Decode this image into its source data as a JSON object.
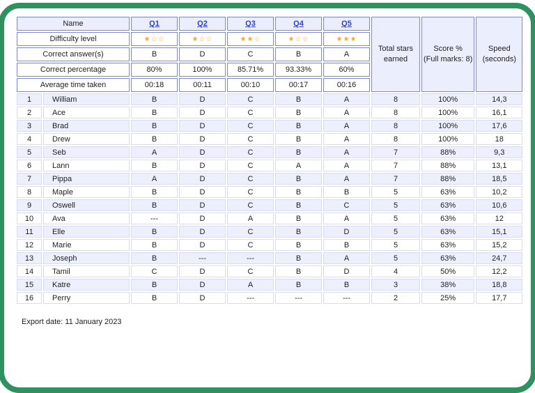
{
  "colors": {
    "frame_green": "#2e915f",
    "header_border_blue": "#7b85e0",
    "data_border_lavender": "#d7dcf3",
    "row_lavender": "#edeffc",
    "link_blue": "#2f3fd6",
    "correct_green": "#45bd7f",
    "wrong_red": "#f4524a",
    "star_gold": "#f9a825"
  },
  "icons": {
    "star_filled": "★",
    "star_outline": "☆"
  },
  "header": {
    "name_label": "Name",
    "row_labels": [
      "Difficulty level",
      "Correct answer(s)",
      "Correct percentage",
      "Average time taken"
    ],
    "questions": [
      {
        "label": "Q1",
        "stars": 1,
        "answer": "B",
        "percentage": "80%",
        "avg_time": "00:18"
      },
      {
        "label": "Q2",
        "stars": 1,
        "answer": "D",
        "percentage": "100%",
        "avg_time": "00:11"
      },
      {
        "label": "Q3",
        "stars": 2,
        "answer": "C",
        "percentage": "85.71%",
        "avg_time": "00:10"
      },
      {
        "label": "Q4",
        "stars": 1,
        "answer": "B",
        "percentage": "93.33%",
        "avg_time": "00:17"
      },
      {
        "label": "Q5",
        "stars": 3,
        "answer": "A",
        "percentage": "60%",
        "avg_time": "00:16"
      }
    ],
    "summary_columns": [
      {
        "lines": [
          "Total stars",
          "earned"
        ]
      },
      {
        "lines": [
          "Score %",
          "(Full marks: 8)"
        ]
      },
      {
        "lines": [
          "Speed",
          "(seconds)"
        ]
      }
    ]
  },
  "rows": [
    {
      "num": "1",
      "name": "William",
      "answers": [
        {
          "t": "B",
          "s": "correct"
        },
        {
          "t": "D",
          "s": "correct"
        },
        {
          "t": "C",
          "s": "correct"
        },
        {
          "t": "B",
          "s": "correct"
        },
        {
          "t": "A",
          "s": "correct"
        }
      ],
      "total_stars": "8",
      "score": "100%",
      "speed": "14,3"
    },
    {
      "num": "2",
      "name": "Ace",
      "answers": [
        {
          "t": "B",
          "s": "correct"
        },
        {
          "t": "D",
          "s": "correct"
        },
        {
          "t": "C",
          "s": "correct"
        },
        {
          "t": "B",
          "s": "correct"
        },
        {
          "t": "A",
          "s": "correct"
        }
      ],
      "total_stars": "8",
      "score": "100%",
      "speed": "16,1"
    },
    {
      "num": "3",
      "name": "Brad",
      "answers": [
        {
          "t": "B",
          "s": "correct"
        },
        {
          "t": "D",
          "s": "correct"
        },
        {
          "t": "C",
          "s": "correct"
        },
        {
          "t": "B",
          "s": "correct"
        },
        {
          "t": "A",
          "s": "correct"
        }
      ],
      "total_stars": "8",
      "score": "100%",
      "speed": "17,6"
    },
    {
      "num": "4",
      "name": "Drew",
      "answers": [
        {
          "t": "B",
          "s": "correct"
        },
        {
          "t": "D",
          "s": "correct"
        },
        {
          "t": "C",
          "s": "correct"
        },
        {
          "t": "B",
          "s": "correct"
        },
        {
          "t": "A",
          "s": "correct"
        }
      ],
      "total_stars": "8",
      "score": "100%",
      "speed": "18"
    },
    {
      "num": "5",
      "name": "Seb",
      "answers": [
        {
          "t": "A",
          "s": "wrong"
        },
        {
          "t": "D",
          "s": "correct"
        },
        {
          "t": "C",
          "s": "correct"
        },
        {
          "t": "B",
          "s": "correct"
        },
        {
          "t": "A",
          "s": "correct"
        }
      ],
      "total_stars": "7",
      "score": "88%",
      "speed": "9,3"
    },
    {
      "num": "6",
      "name": "Lann",
      "answers": [
        {
          "t": "B",
          "s": "correct"
        },
        {
          "t": "D",
          "s": "correct"
        },
        {
          "t": "C",
          "s": "correct"
        },
        {
          "t": "A",
          "s": "wrong"
        },
        {
          "t": "A",
          "s": "correct"
        }
      ],
      "total_stars": "7",
      "score": "88%",
      "speed": "13,1"
    },
    {
      "num": "7",
      "name": "Pippa",
      "answers": [
        {
          "t": "A",
          "s": "wrong"
        },
        {
          "t": "D",
          "s": "correct"
        },
        {
          "t": "C",
          "s": "correct"
        },
        {
          "t": "B",
          "s": "correct"
        },
        {
          "t": "A",
          "s": "correct"
        }
      ],
      "total_stars": "7",
      "score": "88%",
      "speed": "18,5"
    },
    {
      "num": "8",
      "name": "Maple",
      "answers": [
        {
          "t": "B",
          "s": "correct"
        },
        {
          "t": "D",
          "s": "correct"
        },
        {
          "t": "C",
          "s": "correct"
        },
        {
          "t": "B",
          "s": "correct"
        },
        {
          "t": "B",
          "s": "wrong"
        }
      ],
      "total_stars": "5",
      "score": "63%",
      "speed": "10,2"
    },
    {
      "num": "9",
      "name": "Oswell",
      "answers": [
        {
          "t": "B",
          "s": "correct"
        },
        {
          "t": "D",
          "s": "correct"
        },
        {
          "t": "C",
          "s": "correct"
        },
        {
          "t": "B",
          "s": "correct"
        },
        {
          "t": "C",
          "s": "wrong"
        }
      ],
      "total_stars": "5",
      "score": "63%",
      "speed": "10,6"
    },
    {
      "num": "10",
      "name": "Ava",
      "answers": [
        {
          "t": "---",
          "s": "missing"
        },
        {
          "t": "D",
          "s": "correct"
        },
        {
          "t": "A",
          "s": "wrong"
        },
        {
          "t": "B",
          "s": "correct"
        },
        {
          "t": "A",
          "s": "correct"
        }
      ],
      "total_stars": "5",
      "score": "63%",
      "speed": "12"
    },
    {
      "num": "11",
      "name": "Elle",
      "answers": [
        {
          "t": "B",
          "s": "correct"
        },
        {
          "t": "D",
          "s": "correct"
        },
        {
          "t": "C",
          "s": "correct"
        },
        {
          "t": "B",
          "s": "correct"
        },
        {
          "t": "D",
          "s": "wrong"
        }
      ],
      "total_stars": "5",
      "score": "63%",
      "speed": "15,1"
    },
    {
      "num": "12",
      "name": "Marie",
      "answers": [
        {
          "t": "B",
          "s": "correct"
        },
        {
          "t": "D",
          "s": "correct"
        },
        {
          "t": "C",
          "s": "correct"
        },
        {
          "t": "B",
          "s": "correct"
        },
        {
          "t": "B",
          "s": "wrong"
        }
      ],
      "total_stars": "5",
      "score": "63%",
      "speed": "15,2"
    },
    {
      "num": "13",
      "name": "Joseph",
      "answers": [
        {
          "t": "B",
          "s": "correct"
        },
        {
          "t": "---",
          "s": "missing"
        },
        {
          "t": "---",
          "s": "missing"
        },
        {
          "t": "B",
          "s": "correct"
        },
        {
          "t": "A",
          "s": "correct"
        }
      ],
      "total_stars": "5",
      "score": "63%",
      "speed": "24,7"
    },
    {
      "num": "14",
      "name": "Tamil",
      "answers": [
        {
          "t": "C",
          "s": "wrong"
        },
        {
          "t": "D",
          "s": "correct"
        },
        {
          "t": "C",
          "s": "correct"
        },
        {
          "t": "B",
          "s": "correct"
        },
        {
          "t": "D",
          "s": "wrong"
        }
      ],
      "total_stars": "4",
      "score": "50%",
      "speed": "12,2"
    },
    {
      "num": "15",
      "name": "Katre",
      "answers": [
        {
          "t": "B",
          "s": "correct"
        },
        {
          "t": "D",
          "s": "correct"
        },
        {
          "t": "A",
          "s": "wrong"
        },
        {
          "t": "B",
          "s": "correct"
        },
        {
          "t": "B",
          "s": "wrong"
        }
      ],
      "total_stars": "3",
      "score": "38%",
      "speed": "18,8"
    },
    {
      "num": "16",
      "name": "Perry",
      "answers": [
        {
          "t": "B",
          "s": "correct"
        },
        {
          "t": "D",
          "s": "correct"
        },
        {
          "t": "---",
          "s": "missing"
        },
        {
          "t": "---",
          "s": "missing"
        },
        {
          "t": "---",
          "s": "missing"
        }
      ],
      "total_stars": "2",
      "score": "25%",
      "speed": "17,7"
    }
  ],
  "footer": {
    "export_date": "Export date: 11 January 2023"
  }
}
